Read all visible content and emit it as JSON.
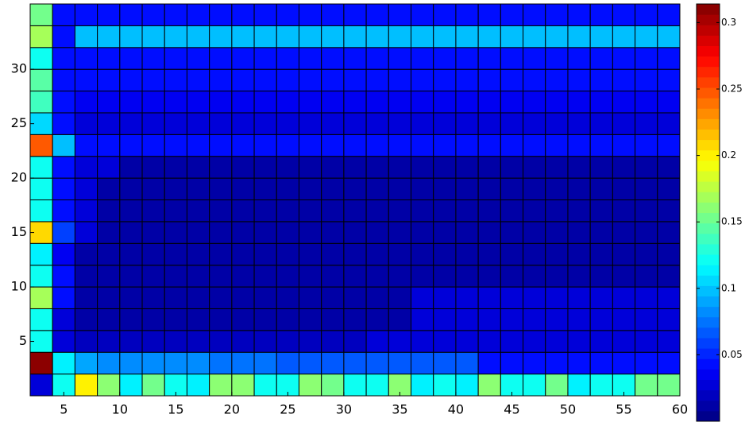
{
  "chart_data": {
    "type": "heatmap",
    "colormap": "jet",
    "colormap_levels": 40,
    "x": [
      2,
      4,
      6,
      8,
      10,
      12,
      14,
      16,
      18,
      20,
      22,
      24,
      26,
      28,
      30,
      32,
      34,
      36,
      38,
      40,
      42,
      44,
      46,
      48,
      50,
      52,
      54,
      56,
      58,
      60
    ],
    "y": [
      0,
      2,
      4,
      6,
      8,
      10,
      12,
      14,
      16,
      18,
      20,
      22,
      24,
      26,
      28,
      30,
      32,
      34,
      36
    ],
    "xlim": [
      2,
      60
    ],
    "ylim": [
      0,
      36
    ],
    "xticks": [
      5,
      10,
      15,
      20,
      25,
      30,
      35,
      40,
      45,
      50,
      55,
      60
    ],
    "yticks": [
      5,
      10,
      15,
      20,
      25,
      30
    ],
    "clim": [
      0,
      0.314
    ],
    "cticks": [
      0.05,
      0.1,
      0.15,
      0.2,
      0.25,
      0.3
    ],
    "z": [
      [
        0.03,
        0.12,
        0.2,
        0.16,
        0.11,
        0.15,
        0.12,
        0.11,
        0.16,
        0.16,
        0.12,
        0.12,
        0.16,
        0.15,
        0.12,
        0.12,
        0.16,
        0.11,
        0.12,
        0.11,
        0.16,
        0.12,
        0.12,
        0.15,
        0.11,
        0.12,
        0.12,
        0.15,
        0.15
      ],
      [
        0.31,
        0.115,
        0.09,
        0.085,
        0.085,
        0.08,
        0.08,
        0.08,
        0.075,
        0.075,
        0.075,
        0.07,
        0.07,
        0.07,
        0.07,
        0.065,
        0.065,
        0.065,
        0.065,
        0.065,
        0.045,
        0.045,
        0.045,
        0.045,
        0.045,
        0.045,
        0.045,
        0.045,
        0.045
      ],
      [
        0.12,
        0.03,
        0.02,
        0.02,
        0.02,
        0.02,
        0.02,
        0.02,
        0.02,
        0.02,
        0.02,
        0.02,
        0.02,
        0.02,
        0.02,
        0.03,
        0.03,
        0.03,
        0.03,
        0.03,
        0.03,
        0.03,
        0.03,
        0.03,
        0.03,
        0.03,
        0.03,
        0.03,
        0.03
      ],
      [
        0.12,
        0.025,
        0.015,
        0.015,
        0.015,
        0.015,
        0.015,
        0.015,
        0.015,
        0.015,
        0.015,
        0.015,
        0.015,
        0.015,
        0.015,
        0.015,
        0.015,
        0.03,
        0.03,
        0.03,
        0.03,
        0.03,
        0.03,
        0.03,
        0.03,
        0.03,
        0.03,
        0.03,
        0.03
      ],
      [
        0.17,
        0.045,
        0.012,
        0.012,
        0.012,
        0.012,
        0.012,
        0.012,
        0.012,
        0.012,
        0.012,
        0.012,
        0.012,
        0.012,
        0.012,
        0.012,
        0.012,
        0.03,
        0.03,
        0.03,
        0.03,
        0.03,
        0.03,
        0.03,
        0.03,
        0.03,
        0.03,
        0.03,
        0.03
      ],
      [
        0.12,
        0.045,
        0.012,
        0.012,
        0.012,
        0.012,
        0.012,
        0.012,
        0.012,
        0.012,
        0.012,
        0.012,
        0.012,
        0.012,
        0.012,
        0.012,
        0.012,
        0.012,
        0.012,
        0.012,
        0.012,
        0.012,
        0.012,
        0.012,
        0.012,
        0.012,
        0.012,
        0.012,
        0.012
      ],
      [
        0.11,
        0.035,
        0.012,
        0.012,
        0.012,
        0.012,
        0.012,
        0.012,
        0.012,
        0.012,
        0.012,
        0.012,
        0.012,
        0.012,
        0.012,
        0.012,
        0.012,
        0.012,
        0.012,
        0.012,
        0.012,
        0.012,
        0.012,
        0.012,
        0.012,
        0.012,
        0.012,
        0.012,
        0.012
      ],
      [
        0.21,
        0.06,
        0.03,
        0.012,
        0.012,
        0.012,
        0.012,
        0.012,
        0.012,
        0.012,
        0.012,
        0.012,
        0.012,
        0.012,
        0.012,
        0.012,
        0.012,
        0.012,
        0.012,
        0.012,
        0.012,
        0.012,
        0.012,
        0.012,
        0.012,
        0.012,
        0.012,
        0.012,
        0.012
      ],
      [
        0.12,
        0.045,
        0.03,
        0.012,
        0.012,
        0.012,
        0.012,
        0.012,
        0.012,
        0.012,
        0.012,
        0.012,
        0.012,
        0.012,
        0.012,
        0.012,
        0.012,
        0.012,
        0.012,
        0.012,
        0.012,
        0.012,
        0.012,
        0.012,
        0.012,
        0.012,
        0.012,
        0.012,
        0.012
      ],
      [
        0.12,
        0.045,
        0.03,
        0.012,
        0.012,
        0.012,
        0.012,
        0.012,
        0.012,
        0.012,
        0.012,
        0.012,
        0.012,
        0.012,
        0.012,
        0.012,
        0.012,
        0.012,
        0.012,
        0.012,
        0.012,
        0.012,
        0.012,
        0.012,
        0.012,
        0.012,
        0.012,
        0.012,
        0.012
      ],
      [
        0.12,
        0.045,
        0.03,
        0.03,
        0.015,
        0.015,
        0.015,
        0.015,
        0.015,
        0.015,
        0.015,
        0.015,
        0.015,
        0.015,
        0.015,
        0.015,
        0.015,
        0.015,
        0.015,
        0.015,
        0.015,
        0.015,
        0.015,
        0.015,
        0.015,
        0.015,
        0.015,
        0.015,
        0.015
      ],
      [
        0.25,
        0.1,
        0.045,
        0.045,
        0.045,
        0.045,
        0.045,
        0.045,
        0.045,
        0.045,
        0.045,
        0.045,
        0.045,
        0.045,
        0.045,
        0.045,
        0.045,
        0.045,
        0.045,
        0.045,
        0.045,
        0.045,
        0.045,
        0.045,
        0.045,
        0.045,
        0.045,
        0.045,
        0.045
      ],
      [
        0.105,
        0.04,
        0.03,
        0.03,
        0.03,
        0.03,
        0.03,
        0.03,
        0.03,
        0.03,
        0.03,
        0.03,
        0.03,
        0.03,
        0.03,
        0.03,
        0.03,
        0.03,
        0.03,
        0.03,
        0.03,
        0.03,
        0.03,
        0.03,
        0.03,
        0.03,
        0.03,
        0.03,
        0.03
      ],
      [
        0.14,
        0.04,
        0.035,
        0.035,
        0.035,
        0.035,
        0.035,
        0.035,
        0.035,
        0.035,
        0.035,
        0.035,
        0.035,
        0.035,
        0.035,
        0.035,
        0.035,
        0.035,
        0.035,
        0.035,
        0.035,
        0.035,
        0.035,
        0.035,
        0.035,
        0.035,
        0.035,
        0.035,
        0.035
      ],
      [
        0.145,
        0.045,
        0.045,
        0.045,
        0.045,
        0.045,
        0.045,
        0.045,
        0.045,
        0.045,
        0.045,
        0.045,
        0.045,
        0.045,
        0.045,
        0.045,
        0.045,
        0.045,
        0.045,
        0.045,
        0.045,
        0.045,
        0.045,
        0.045,
        0.045,
        0.045,
        0.045,
        0.045,
        0.045
      ],
      [
        0.12,
        0.045,
        0.045,
        0.045,
        0.045,
        0.045,
        0.045,
        0.045,
        0.045,
        0.045,
        0.045,
        0.045,
        0.045,
        0.045,
        0.045,
        0.045,
        0.045,
        0.045,
        0.045,
        0.045,
        0.045,
        0.045,
        0.045,
        0.045,
        0.045,
        0.045,
        0.045,
        0.045,
        0.045
      ],
      [
        0.17,
        0.045,
        0.1,
        0.1,
        0.1,
        0.1,
        0.1,
        0.1,
        0.1,
        0.1,
        0.1,
        0.1,
        0.1,
        0.1,
        0.1,
        0.1,
        0.1,
        0.1,
        0.1,
        0.1,
        0.1,
        0.1,
        0.1,
        0.1,
        0.1,
        0.1,
        0.1,
        0.1,
        0.1
      ],
      [
        0.15,
        0.045,
        0.045,
        0.045,
        0.045,
        0.045,
        0.045,
        0.045,
        0.045,
        0.045,
        0.045,
        0.045,
        0.045,
        0.045,
        0.045,
        0.045,
        0.045,
        0.045,
        0.045,
        0.045,
        0.045,
        0.045,
        0.045,
        0.045,
        0.045,
        0.045,
        0.045,
        0.045,
        0.045
      ]
    ]
  }
}
